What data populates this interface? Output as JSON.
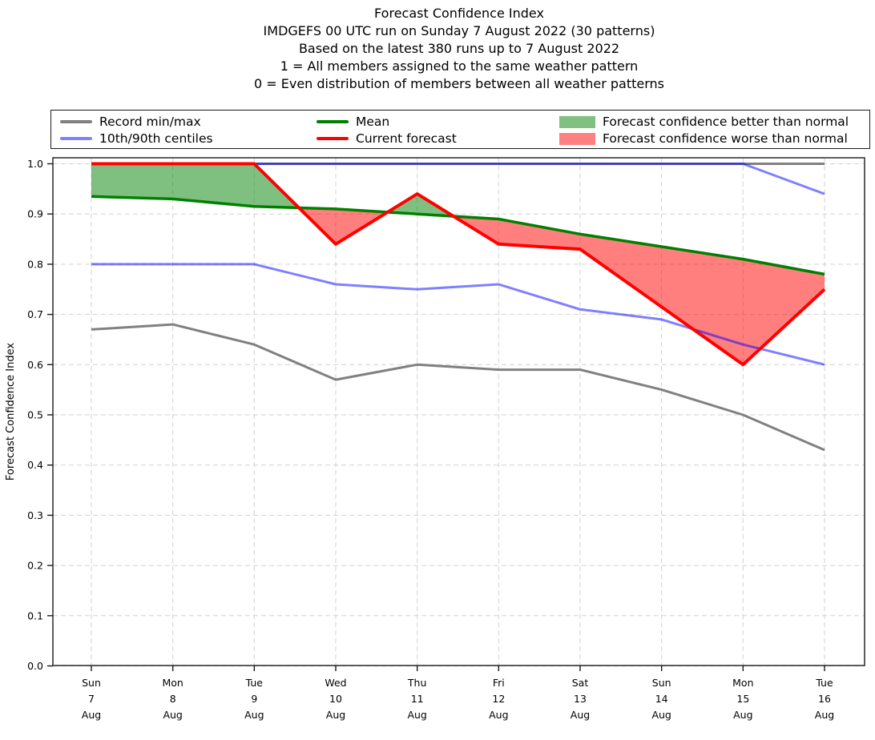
{
  "chart_data": {
    "type": "line",
    "title": "Forecast Confidence Index",
    "title_lines": [
      "Forecast Confidence Index",
      "IMDGEFS 00 UTC run on Sunday 7 August 2022 (30 patterns)",
      "Based on the latest 380 runs up to 7 August 2022",
      "1 = All members assigned to the same weather pattern",
      "0 = Even distribution of members between all weather patterns"
    ],
    "ylabel": "Forecast Confidence Index",
    "ylim": [
      0.0,
      1.0
    ],
    "ytick_labels": [
      "0.0",
      "0.1",
      "0.2",
      "0.3",
      "0.4",
      "0.5",
      "0.6",
      "0.7",
      "0.8",
      "0.9",
      "1.0"
    ],
    "grid": true,
    "legend_position": "top",
    "categories": [
      {
        "weekday": "Sun",
        "day": "7",
        "month": "Aug"
      },
      {
        "weekday": "Mon",
        "day": "8",
        "month": "Aug"
      },
      {
        "weekday": "Tue",
        "day": "9",
        "month": "Aug"
      },
      {
        "weekday": "Wed",
        "day": "10",
        "month": "Aug"
      },
      {
        "weekday": "Thu",
        "day": "11",
        "month": "Aug"
      },
      {
        "weekday": "Fri",
        "day": "12",
        "month": "Aug"
      },
      {
        "weekday": "Sat",
        "day": "13",
        "month": "Aug"
      },
      {
        "weekday": "Sun",
        "day": "14",
        "month": "Aug"
      },
      {
        "weekday": "Mon",
        "day": "15",
        "month": "Aug"
      },
      {
        "weekday": "Tue",
        "day": "16",
        "month": "Aug"
      }
    ],
    "series": [
      {
        "name": "Record max",
        "color": "#808080",
        "width": 3,
        "values": [
          1.0,
          1.0,
          1.0,
          1.0,
          1.0,
          1.0,
          1.0,
          1.0,
          1.0,
          1.0
        ]
      },
      {
        "name": "Record min",
        "color": "#808080",
        "width": 3,
        "values": [
          0.67,
          0.68,
          0.64,
          0.57,
          0.6,
          0.59,
          0.59,
          0.55,
          0.5,
          0.43
        ]
      },
      {
        "name": "90th centile",
        "color": "rgba(0,0,255,0.5)",
        "width": 3,
        "values": [
          1.0,
          1.0,
          1.0,
          1.0,
          1.0,
          1.0,
          1.0,
          1.0,
          1.0,
          0.94
        ]
      },
      {
        "name": "10th centile",
        "color": "rgba(0,0,255,0.5)",
        "width": 3,
        "values": [
          0.8,
          0.8,
          0.8,
          0.76,
          0.75,
          0.76,
          0.71,
          0.69,
          0.64,
          0.6
        ]
      },
      {
        "name": "Mean",
        "color": "#008000",
        "width": 3.5,
        "values": [
          0.935,
          0.93,
          0.915,
          0.91,
          0.9,
          0.89,
          0.86,
          0.835,
          0.81,
          0.78
        ]
      },
      {
        "name": "Current forecast",
        "color": "#ff0000",
        "width": 4,
        "values": [
          1.0,
          1.0,
          1.0,
          0.84,
          0.94,
          0.84,
          0.83,
          0.715,
          0.6,
          0.75
        ]
      }
    ],
    "fill_between": {
      "upper_series": "Current forecast",
      "lower_series": "Mean",
      "better_label": "Forecast confidence better than normal",
      "worse_label": "Forecast confidence worse than normal",
      "better_fill": "rgba(0,128,0,0.5)",
      "worse_fill": "rgba(255,0,0,0.5)"
    }
  },
  "legend": {
    "items": [
      {
        "label": "Record min/max",
        "type": "line",
        "color": "#808080"
      },
      {
        "label": "10th/90th centiles",
        "type": "line",
        "color": "#8080ff"
      },
      {
        "label": "Mean",
        "type": "line",
        "color": "#008000"
      },
      {
        "label": "Current forecast",
        "type": "line",
        "color": "#ff0000"
      },
      {
        "label": "Forecast confidence better than normal",
        "type": "patch",
        "color": "#80c080"
      },
      {
        "label": "Forecast confidence worse than normal",
        "type": "patch",
        "color": "#ff8080"
      }
    ]
  }
}
